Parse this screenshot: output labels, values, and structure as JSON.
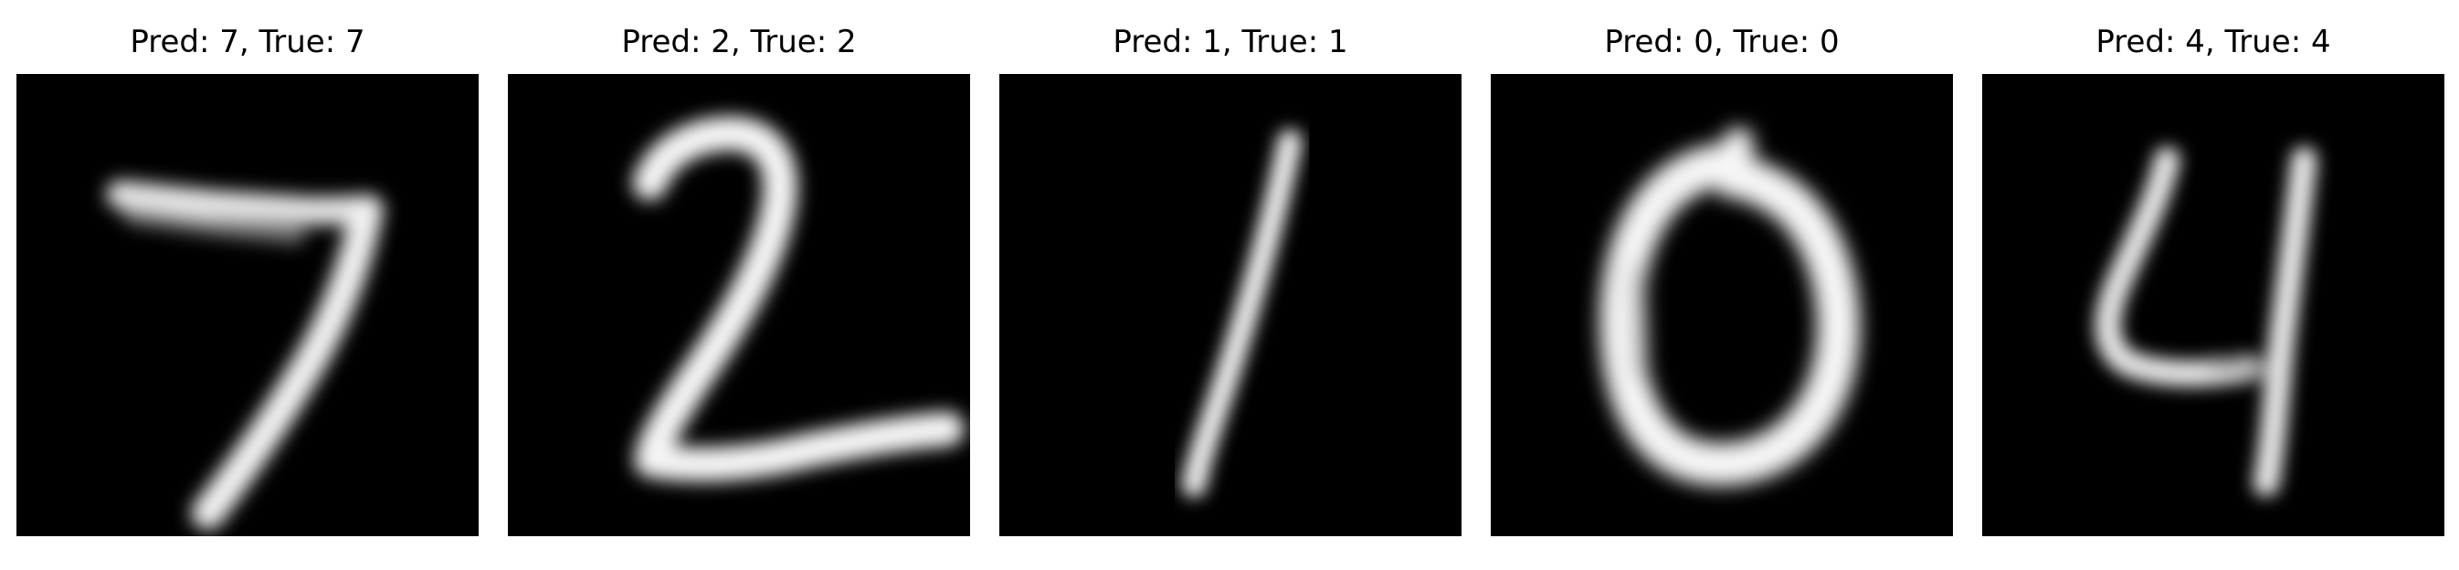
{
  "figure": {
    "panels": [
      {
        "title": "Pred: 7, True: 7",
        "predicted": 7,
        "true_label": 7,
        "image": "handwritten-digit-7"
      },
      {
        "title": "Pred: 2, True: 2",
        "predicted": 2,
        "true_label": 2,
        "image": "handwritten-digit-2"
      },
      {
        "title": "Pred: 1, True: 1",
        "predicted": 1,
        "true_label": 1,
        "image": "handwritten-digit-1"
      },
      {
        "title": "Pred: 0, True: 0",
        "predicted": 0,
        "true_label": 0,
        "image": "handwritten-digit-0"
      },
      {
        "title": "Pred: 4, True: 4",
        "predicted": 4,
        "true_label": 4,
        "image": "handwritten-digit-4"
      }
    ],
    "colors": {
      "background": "#ffffff",
      "image_background": "#000000",
      "stroke": "#f4f4f4",
      "title_text": "#000000"
    }
  }
}
